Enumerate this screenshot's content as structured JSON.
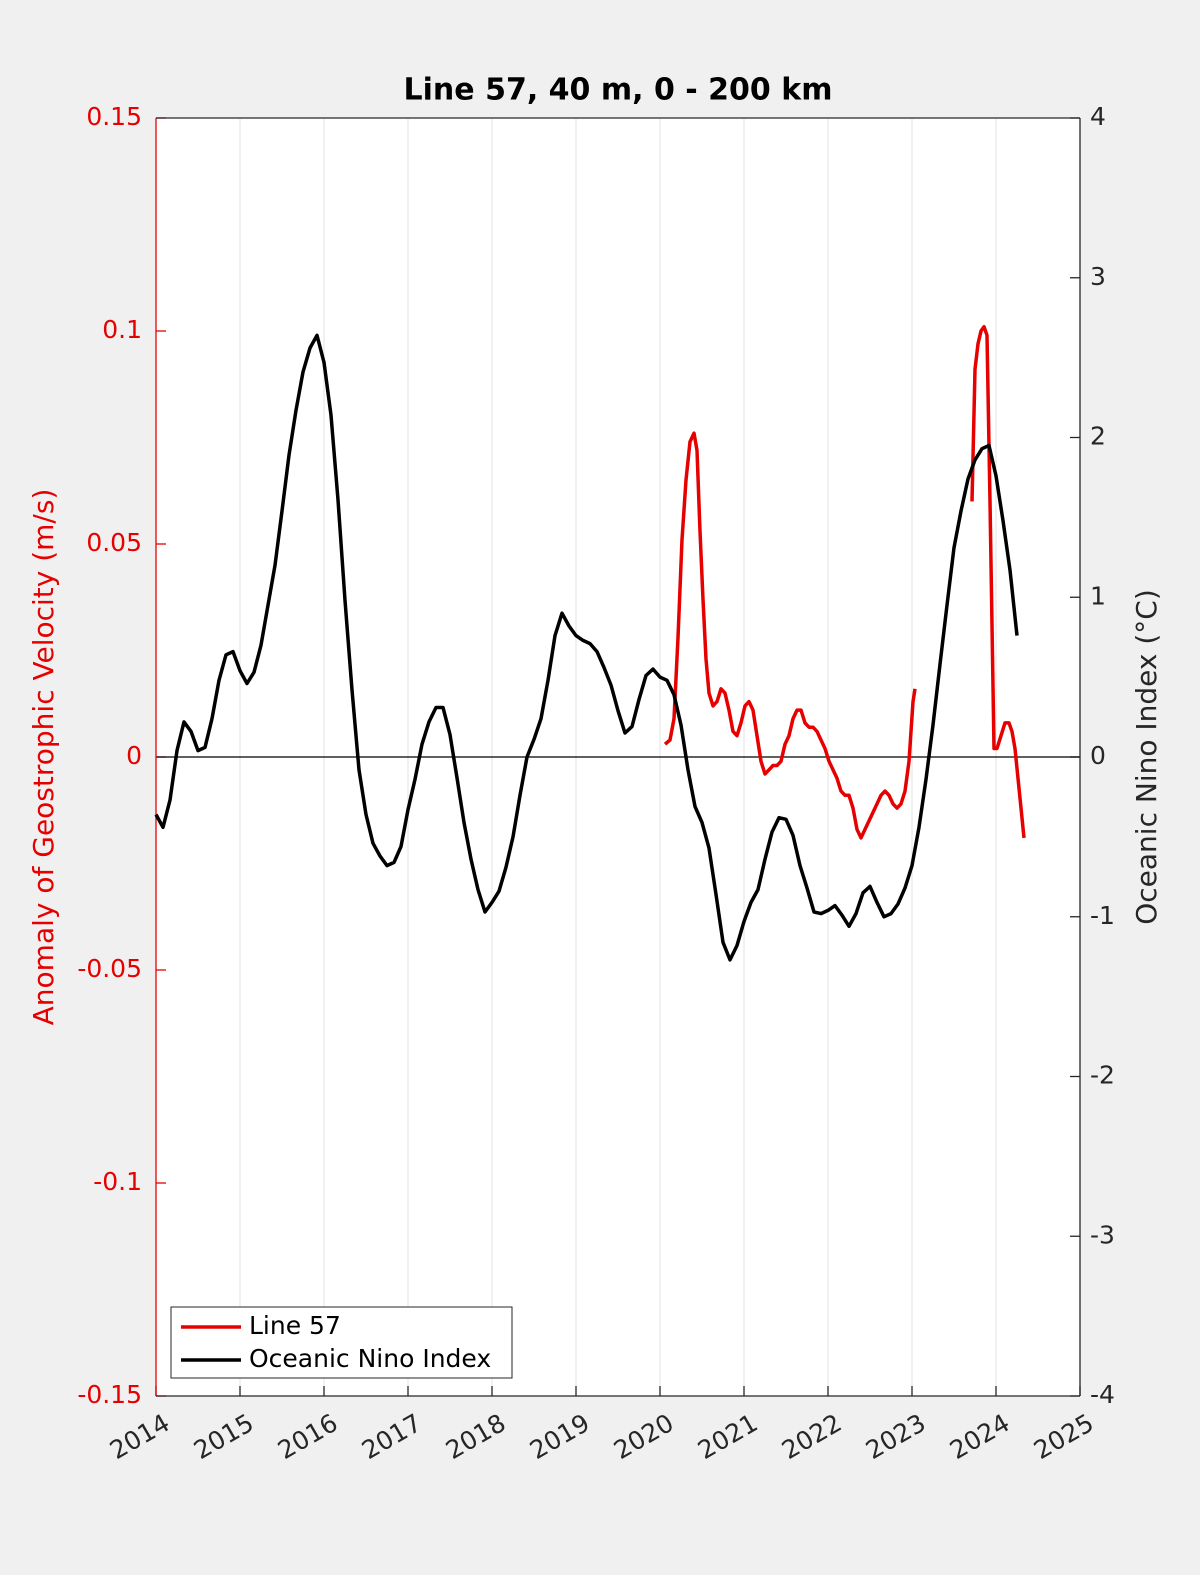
{
  "chart_data": {
    "type": "line",
    "title": "Line 57, 40 m, 0 - 200 km",
    "y_label": "Anomaly of Geostrophic Velocity (m/s)",
    "y2_label": "Oceanic Nino Index (°C)",
    "xlim": [
      2014,
      2025
    ],
    "xticks": [
      2014,
      2015,
      2016,
      2017,
      2018,
      2019,
      2020,
      2021,
      2022,
      2023,
      2024,
      2025
    ],
    "ylim": [
      -0.15,
      0.15
    ],
    "yticks": [
      -0.15,
      -0.1,
      -0.05,
      0,
      0.05,
      0.1,
      0.15
    ],
    "y2lim": [
      -4,
      4
    ],
    "y2ticks": [
      -4,
      -3,
      -2,
      -1,
      0,
      1,
      2,
      3,
      4
    ],
    "grid": "x",
    "reference_line": 0,
    "y_color": "#e60000",
    "legend": "lower-left",
    "series": [
      {
        "name": "Line 57",
        "color": "#e60000",
        "axis": "y",
        "x": [
          2020.06,
          2020.119,
          2020.167,
          2020.214,
          2020.262,
          2020.31,
          2020.357,
          2020.405,
          2020.44,
          2020.476,
          2020.512,
          2020.548,
          2020.583,
          2020.631,
          2020.679,
          2020.726,
          2020.774,
          2020.821,
          2020.869,
          2020.917,
          2020.964,
          2021.012,
          2021.06,
          2021.107,
          2021.155,
          2021.202,
          2021.25,
          2021.298,
          2021.345,
          2021.393,
          2021.44,
          2021.488,
          2021.536,
          2021.583,
          2021.631,
          2021.679,
          2021.726,
          2021.774,
          2021.821,
          2021.869,
          2021.917,
          2021.964,
          2022.012,
          2022.06,
          2022.107,
          2022.155,
          2022.202,
          2022.25,
          2022.298,
          2022.345,
          2022.393,
          2022.44,
          2022.488,
          2022.536,
          2022.583,
          2022.631,
          2022.679,
          2022.726,
          2022.774,
          2022.821,
          2022.869,
          2022.917,
          2022.964,
          2023.012,
          2023.036,
          2023.5,
          2023.714,
          2023.75,
          2023.786,
          2023.821,
          2023.857,
          2023.893,
          2023.929,
          2023.976,
          2024.012,
          2024.06,
          2024.107,
          2024.155,
          2024.19,
          2024.226,
          2024.262,
          2024.298,
          2024.333
        ],
        "values": [
          0.003,
          0.004,
          0.009,
          0.028,
          0.051,
          0.065,
          0.074,
          0.076,
          0.072,
          0.053,
          0.037,
          0.023,
          0.015,
          0.012,
          0.013,
          0.016,
          0.015,
          0.011,
          0.006,
          0.005,
          0.008,
          0.012,
          0.013,
          0.011,
          0.005,
          -0.001,
          -0.004,
          -0.003,
          -0.002,
          -0.002,
          -0.001,
          0.003,
          0.005,
          0.009,
          0.011,
          0.011,
          0.008,
          0.007,
          0.007,
          0.006,
          0.004,
          0.002,
          -0.001,
          -0.003,
          -0.005,
          -0.008,
          -0.009,
          -0.009,
          -0.012,
          -0.017,
          -0.019,
          -0.017,
          -0.015,
          -0.013,
          -0.011,
          -0.009,
          -0.008,
          -0.009,
          -0.011,
          -0.012,
          -0.011,
          -0.008,
          -0.001,
          0.013,
          0.016,
          null,
          0.06,
          0.091,
          0.097,
          0.1,
          0.101,
          0.099,
          0.06,
          0.002,
          0.002,
          0.005,
          0.008,
          0.008,
          0.006,
          0.002,
          -0.005,
          -0.012,
          -0.019
        ]
      },
      {
        "name": "Oceanic Nino Index",
        "color": "#000000",
        "axis": "y2",
        "x": [
          2014,
          2014.083,
          2014.167,
          2014.25,
          2014.333,
          2014.417,
          2014.5,
          2014.583,
          2014.667,
          2014.75,
          2014.833,
          2014.917,
          2015,
          2015.083,
          2015.167,
          2015.25,
          2015.333,
          2015.417,
          2015.5,
          2015.583,
          2015.667,
          2015.75,
          2015.833,
          2015.917,
          2016,
          2016.083,
          2016.167,
          2016.25,
          2016.333,
          2016.417,
          2016.5,
          2016.583,
          2016.667,
          2016.75,
          2016.833,
          2016.917,
          2017,
          2017.083,
          2017.167,
          2017.25,
          2017.333,
          2017.417,
          2017.5,
          2017.583,
          2017.667,
          2017.75,
          2017.833,
          2017.917,
          2018,
          2018.083,
          2018.167,
          2018.25,
          2018.333,
          2018.417,
          2018.5,
          2018.583,
          2018.667,
          2018.75,
          2018.833,
          2018.917,
          2019,
          2019.083,
          2019.167,
          2019.25,
          2019.333,
          2019.417,
          2019.5,
          2019.583,
          2019.667,
          2019.75,
          2019.833,
          2019.917,
          2020,
          2020.083,
          2020.167,
          2020.25,
          2020.333,
          2020.417,
          2020.5,
          2020.583,
          2020.667,
          2020.75,
          2020.833,
          2020.917,
          2021,
          2021.083,
          2021.167,
          2021.25,
          2021.333,
          2021.417,
          2021.5,
          2021.583,
          2021.667,
          2021.75,
          2021.833,
          2021.917,
          2022,
          2022.083,
          2022.167,
          2022.25,
          2022.333,
          2022.417,
          2022.5,
          2022.583,
          2022.667,
          2022.75,
          2022.833,
          2022.917,
          2023,
          2023.083,
          2023.167,
          2023.25,
          2023.333,
          2023.417,
          2023.5,
          2023.583,
          2023.667,
          2023.75,
          2023.833,
          2023.917,
          2024,
          2024.083,
          2024.167,
          2024.25
        ],
        "values": [
          -0.36,
          -0.44,
          -0.27,
          0.04,
          0.22,
          0.16,
          0.04,
          0.06,
          0.24,
          0.48,
          0.64,
          0.66,
          0.54,
          0.46,
          0.53,
          0.7,
          0.95,
          1.2,
          1.54,
          1.89,
          2.17,
          2.41,
          2.56,
          2.64,
          2.47,
          2.14,
          1.61,
          0.98,
          0.42,
          -0.08,
          -0.36,
          -0.54,
          -0.62,
          -0.68,
          -0.66,
          -0.56,
          -0.33,
          -0.14,
          0.08,
          0.22,
          0.31,
          0.31,
          0.14,
          -0.13,
          -0.41,
          -0.64,
          -0.83,
          -0.97,
          -0.91,
          -0.84,
          -0.69,
          -0.5,
          -0.24,
          0,
          0.11,
          0.24,
          0.48,
          0.76,
          0.9,
          0.82,
          0.76,
          0.73,
          0.71,
          0.66,
          0.56,
          0.45,
          0.29,
          0.15,
          0.19,
          0.36,
          0.51,
          0.55,
          0.5,
          0.48,
          0.39,
          0.2,
          -0.08,
          -0.31,
          -0.41,
          -0.57,
          -0.86,
          -1.16,
          -1.27,
          -1.18,
          -1.03,
          -0.91,
          -0.83,
          -0.64,
          -0.47,
          -0.38,
          -0.39,
          -0.49,
          -0.68,
          -0.82,
          -0.97,
          -0.98,
          -0.96,
          -0.93,
          -0.99,
          -1.06,
          -0.98,
          -0.85,
          -0.81,
          -0.91,
          -1,
          -0.98,
          -0.92,
          -0.82,
          -0.68,
          -0.44,
          -0.14,
          0.2,
          0.58,
          0.95,
          1.31,
          1.54,
          1.74,
          1.86,
          1.93,
          1.95,
          1.76,
          1.48,
          1.17,
          0.76
        ]
      }
    ]
  }
}
